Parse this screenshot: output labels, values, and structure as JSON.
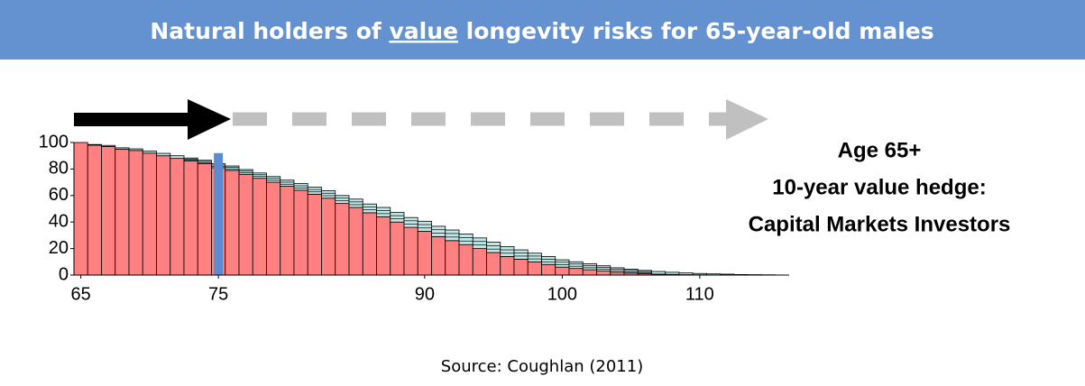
{
  "header": {
    "title_before": "Natural holders of ",
    "title_underlined": "value",
    "title_after": " longevity risks for 65-year-old males"
  },
  "chart_data": {
    "type": "bar",
    "x": [
      65,
      66,
      67,
      68,
      69,
      70,
      71,
      72,
      73,
      74,
      75,
      76,
      77,
      78,
      79,
      80,
      81,
      82,
      83,
      84,
      85,
      86,
      87,
      88,
      89,
      90,
      91,
      92,
      93,
      94,
      95,
      96,
      97,
      98,
      99,
      100,
      101,
      102,
      103,
      104,
      105,
      106,
      107,
      108,
      109,
      110,
      111,
      112,
      113,
      114,
      115
    ],
    "series": [
      {
        "color": "#ff8080",
        "values": [
          100,
          98,
          97,
          95,
          94,
          92,
          90,
          88,
          86,
          84,
          81,
          79,
          76,
          73,
          70,
          67,
          64,
          61,
          58,
          54,
          51,
          47,
          44,
          40,
          36,
          33,
          29,
          26,
          23,
          20,
          17,
          14,
          12,
          10,
          8,
          6,
          5,
          4,
          3,
          2,
          1.5,
          1,
          0.7,
          0.5,
          0.3,
          0.2,
          0.1,
          0.1,
          0,
          0,
          0
        ]
      },
      {
        "color": "#bfe8e6",
        "values": [
          0,
          0.5,
          0.8,
          1,
          1.2,
          1.5,
          1.8,
          2,
          2.3,
          2.6,
          3,
          3.3,
          3.6,
          4,
          4.3,
          4.6,
          5,
          5.3,
          5.6,
          6,
          6.3,
          6.6,
          7,
          7.2,
          7.4,
          7.6,
          7.8,
          8,
          8,
          8,
          7.8,
          7.5,
          7,
          6.5,
          6,
          5.5,
          5,
          4.5,
          4,
          3.5,
          3,
          2.5,
          2,
          1.6,
          1.3,
          1,
          0.8,
          0.6,
          0.4,
          0.3,
          0.2
        ]
      }
    ],
    "marker": {
      "x": 75,
      "value": 92,
      "color": "#5b8bd0"
    },
    "xlim": [
      64.5,
      116.5
    ],
    "xticks": [
      65,
      75,
      90,
      100,
      110
    ],
    "ylim": [
      0,
      100
    ],
    "yticks": [
      0,
      20,
      40,
      60,
      80,
      100
    ],
    "annotation": [
      "Age 65+",
      "10-year value hedge:",
      "Capital Markets Investors"
    ]
  },
  "footer": {
    "source": "Source: Coughlan (2011)"
  }
}
